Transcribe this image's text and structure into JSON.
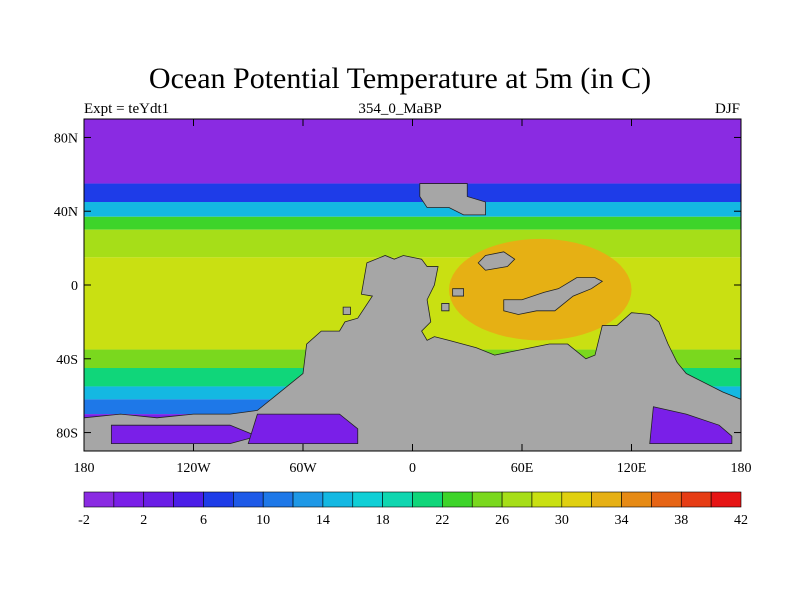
{
  "title": "Ocean Potential Temperature at 5m (in C)",
  "subtitle_left": "Expt = teYdt1",
  "subtitle_center": "354_0_MaBP",
  "subtitle_right": "DJF",
  "colors": {
    "land": "#a6a6a6",
    "ice_ocean": "#7a1fe8",
    "palette": [
      "#8a2be2",
      "#7a1fe8",
      "#6a1ee6",
      "#4b1ee8",
      "#1e3ce8",
      "#1e5ae8",
      "#1e78e8",
      "#1e98e6",
      "#14b8e2",
      "#10cfd6",
      "#10d6b0",
      "#10d67a",
      "#3ed42a",
      "#7ad81e",
      "#a6de18",
      "#c9e012",
      "#e0d010",
      "#e6b014",
      "#e68a14",
      "#e66414",
      "#e63c14",
      "#e61414"
    ]
  },
  "chart_data": {
    "type": "heatmap",
    "title": "Ocean Potential Temperature at 5m (in C)",
    "x_ticks": [
      "180",
      "120W",
      "60W",
      "0",
      "60E",
      "120E",
      "180"
    ],
    "x_tick_values": [
      -180,
      -120,
      -60,
      0,
      60,
      120,
      180
    ],
    "y_ticks": [
      "80N",
      "40N",
      "0",
      "40S",
      "80S"
    ],
    "y_tick_values": [
      80,
      40,
      0,
      -40,
      -80
    ],
    "xlim": [
      -180,
      180
    ],
    "ylim": [
      -90,
      90
    ],
    "colorbar_levels": [
      -4,
      -2,
      0,
      2,
      4,
      6,
      8,
      10,
      12,
      14,
      16,
      18,
      20,
      22,
      24,
      26,
      28,
      30,
      32,
      34,
      36,
      38,
      40,
      42,
      44
    ],
    "colorbar_labels": [
      "-2",
      "2",
      "6",
      "10",
      "14",
      "18",
      "22",
      "26",
      "30",
      "34",
      "38",
      "42"
    ],
    "colorbar_label_values": [
      -2,
      2,
      6,
      10,
      14,
      18,
      22,
      26,
      30,
      34,
      38,
      42
    ],
    "zonal_bands": [
      {
        "lat": [
          90,
          55
        ],
        "temp": -3
      },
      {
        "lat": [
          55,
          45
        ],
        "temp": 4
      },
      {
        "lat": [
          45,
          37
        ],
        "temp": 12
      },
      {
        "lat": [
          37,
          30
        ],
        "temp": 20
      },
      {
        "lat": [
          30,
          15
        ],
        "temp": 24
      },
      {
        "lat": [
          15,
          -35
        ],
        "temp": 26
      },
      {
        "lat": [
          -35,
          -45
        ],
        "temp": 23
      },
      {
        "lat": [
          -45,
          -55
        ],
        "temp": 18
      },
      {
        "lat": [
          -55,
          -62
        ],
        "temp": 13
      },
      {
        "lat": [
          -62,
          -70
        ],
        "temp": 8
      },
      {
        "lat": [
          -70,
          -90
        ],
        "temp": -1
      }
    ],
    "warm_pool": {
      "lon": [
        20,
        120
      ],
      "lat": [
        25,
        -30
      ],
      "temp": 30
    }
  }
}
